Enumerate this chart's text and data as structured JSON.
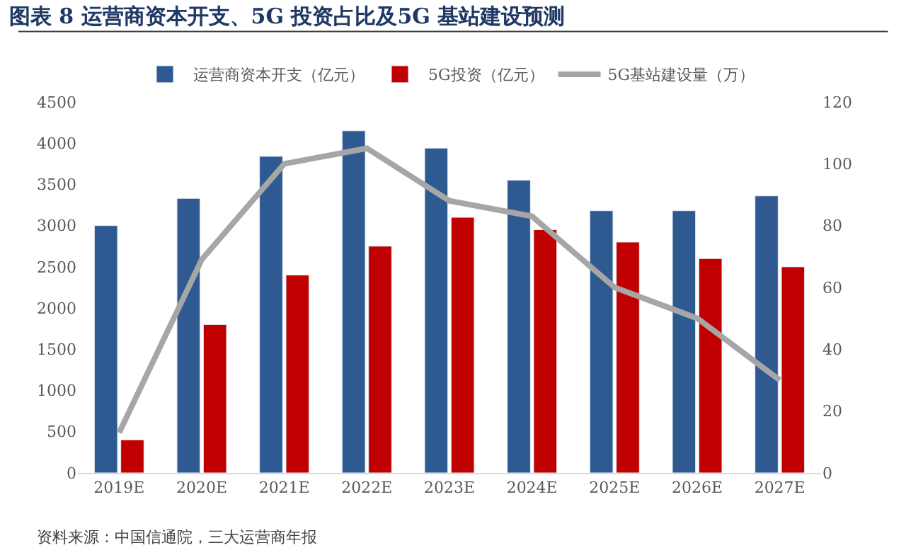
{
  "chart_data": {
    "type": "bar",
    "title": "图表 8 运营商资本开支、5G 投资占比及5G 基站建设预测",
    "categories": [
      "2019E",
      "2020E",
      "2021E",
      "2022E",
      "2023E",
      "2024E",
      "2025E",
      "2026E",
      "2027E"
    ],
    "series": [
      {
        "name": "运营商资本开支（亿元）",
        "color": "#2e5a91",
        "values": [
          3000,
          3330,
          3840,
          4150,
          3940,
          3550,
          3180,
          3180,
          3360
        ]
      },
      {
        "name": "5G投资（亿元）",
        "color": "#c00000",
        "values": [
          400,
          1800,
          2400,
          2750,
          3100,
          2950,
          2800,
          2600,
          2500
        ]
      },
      {
        "name": "5G基站建设量（万）",
        "color": "#a6a6a6",
        "type": "line",
        "axis": "y2",
        "values": [
          13,
          69,
          100,
          105,
          88,
          83,
          60,
          50,
          30
        ]
      }
    ],
    "ylim": [
      0,
      4500
    ],
    "yticks": [
      0,
      500,
      1000,
      1500,
      2000,
      2500,
      3000,
      3500,
      4000,
      4500
    ],
    "y2lim": [
      0,
      120
    ],
    "y2ticks": [
      0,
      20,
      40,
      60,
      80,
      100,
      120
    ],
    "legend": "top",
    "marker": "none",
    "annotations": [
      "资料来源：中国信通院，三大运营商年报"
    ]
  }
}
